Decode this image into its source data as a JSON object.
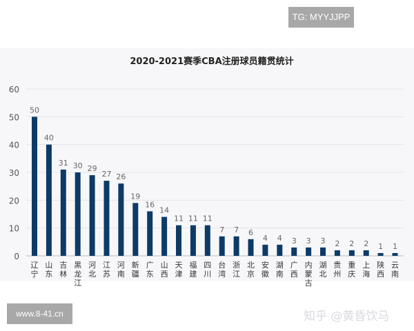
{
  "watermarks": {
    "tg": "TG: MYYJJPP",
    "site": "www.8-41.cn",
    "zhihu": "知乎 @黄昏饮马"
  },
  "chart_data": {
    "type": "bar",
    "title": "2020-2021赛季CBA注册球员籍贯统计",
    "xlabel": "",
    "ylabel": "",
    "ylim": [
      0,
      60
    ],
    "yticks": [
      0,
      10,
      20,
      30,
      40,
      50,
      60
    ],
    "grid": true,
    "bar_color": "#0d3b66",
    "categories": [
      "辽宁",
      "山东",
      "吉林",
      "黑龙江",
      "河北",
      "江苏",
      "河南",
      "新疆",
      "广东",
      "山西",
      "天津",
      "福建",
      "四川",
      "台湾",
      "浙江",
      "北京",
      "安徽",
      "湖南",
      "广西",
      "内蒙古",
      "湖北",
      "贵州",
      "重庆",
      "上海",
      "陕西",
      "云南"
    ],
    "values": [
      50,
      40,
      31,
      30,
      29,
      27,
      26,
      19,
      16,
      14,
      11,
      11,
      11,
      7,
      7,
      6,
      4,
      4,
      3,
      3,
      3,
      2,
      2,
      2,
      1,
      1
    ]
  }
}
